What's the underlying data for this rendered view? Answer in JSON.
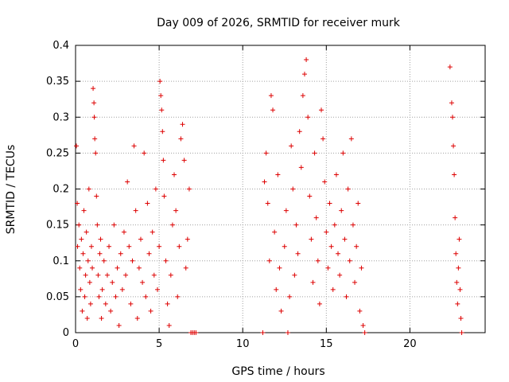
{
  "chart_data": {
    "type": "scatter",
    "title": "Day 009 of 2026, SRMTID for receiver murk",
    "xlabel": "GPS time / hours",
    "ylabel": "SRMTID / TECUs",
    "xlim": [
      0,
      24.5
    ],
    "ylim": [
      0,
      0.4
    ],
    "x_ticks": [
      0,
      5,
      10,
      15,
      20
    ],
    "x_tick_labels": [
      "0",
      "5",
      "10",
      "15",
      "20"
    ],
    "y_ticks": [
      0,
      0.05,
      0.1,
      0.15,
      0.2,
      0.25,
      0.3,
      0.35,
      0.4
    ],
    "y_tick_labels": [
      "0",
      "0.05",
      "0.1",
      "0.15",
      "0.2",
      "0.25",
      "0.3",
      "0.35",
      "0.4"
    ],
    "grid": true,
    "marker": "+",
    "color": "#dd0000",
    "series": [
      {
        "points": [
          [
            0.05,
            0.26
          ],
          [
            0.1,
            0.18
          ],
          [
            0.12,
            0.12
          ],
          [
            0.2,
            0.15
          ],
          [
            0.25,
            0.09
          ],
          [
            0.3,
            0.06
          ],
          [
            0.35,
            0.13
          ],
          [
            0.4,
            0.03
          ],
          [
            0.45,
            0.11
          ],
          [
            0.5,
            0.17
          ],
          [
            0.55,
            0.05
          ],
          [
            0.6,
            0.08
          ],
          [
            0.65,
            0.14
          ],
          [
            0.7,
            0.02
          ],
          [
            0.75,
            0.1
          ],
          [
            0.8,
            0.2
          ],
          [
            0.85,
            0.07
          ],
          [
            0.9,
            0.04
          ],
          [
            0.95,
            0.12
          ],
          [
            1.0,
            0.09
          ],
          [
            1.05,
            0.34
          ],
          [
            1.1,
            0.32
          ],
          [
            1.12,
            0.3
          ],
          [
            1.15,
            0.27
          ],
          [
            1.2,
            0.25
          ],
          [
            1.25,
            0.19
          ],
          [
            1.3,
            0.15
          ],
          [
            1.35,
            0.08
          ],
          [
            1.4,
            0.05
          ],
          [
            1.45,
            0.11
          ],
          [
            1.5,
            0.13
          ],
          [
            1.55,
            0.02
          ],
          [
            1.6,
            0.06
          ],
          [
            1.7,
            0.1
          ],
          [
            1.8,
            0.04
          ],
          [
            1.9,
            0.08
          ],
          [
            2.0,
            0.12
          ],
          [
            2.1,
            0.03
          ],
          [
            2.2,
            0.07
          ],
          [
            2.3,
            0.15
          ],
          [
            2.4,
            0.05
          ],
          [
            2.5,
            0.09
          ],
          [
            2.6,
            0.01
          ],
          [
            2.7,
            0.11
          ],
          [
            2.8,
            0.06
          ],
          [
            2.9,
            0.14
          ],
          [
            3.0,
            0.08
          ],
          [
            3.1,
            0.21
          ],
          [
            3.2,
            0.12
          ],
          [
            3.3,
            0.04
          ],
          [
            3.4,
            0.1
          ],
          [
            3.5,
            0.26
          ],
          [
            3.6,
            0.17
          ],
          [
            3.7,
            0.02
          ],
          [
            3.8,
            0.09
          ],
          [
            3.9,
            0.13
          ],
          [
            4.0,
            0.07
          ],
          [
            4.1,
            0.25
          ],
          [
            4.2,
            0.05
          ],
          [
            4.3,
            0.18
          ],
          [
            4.4,
            0.11
          ],
          [
            4.5,
            0.03
          ],
          [
            4.6,
            0.14
          ],
          [
            4.7,
            0.08
          ],
          [
            4.8,
            0.2
          ],
          [
            4.9,
            0.06
          ],
          [
            5.0,
            0.12
          ],
          [
            5.05,
            0.35
          ],
          [
            5.1,
            0.33
          ],
          [
            5.15,
            0.31
          ],
          [
            5.2,
            0.28
          ],
          [
            5.25,
            0.24
          ],
          [
            5.3,
            0.19
          ],
          [
            5.4,
            0.1
          ],
          [
            5.5,
            0.04
          ],
          [
            5.6,
            0.01
          ],
          [
            5.7,
            0.08
          ],
          [
            5.8,
            0.15
          ],
          [
            5.9,
            0.22
          ],
          [
            6.0,
            0.17
          ],
          [
            6.1,
            0.05
          ],
          [
            6.2,
            0.12
          ],
          [
            6.3,
            0.27
          ],
          [
            6.4,
            0.29
          ],
          [
            6.5,
            0.24
          ],
          [
            6.6,
            0.09
          ],
          [
            6.7,
            0.13
          ],
          [
            6.8,
            0.2
          ],
          [
            6.9,
            0.0
          ],
          [
            7.0,
            0.0
          ],
          [
            7.1,
            0.0
          ],
          [
            7.2,
            0.0
          ],
          [
            11.2,
            0.0
          ],
          [
            11.3,
            0.21
          ],
          [
            11.4,
            0.25
          ],
          [
            11.5,
            0.18
          ],
          [
            11.6,
            0.1
          ],
          [
            11.7,
            0.33
          ],
          [
            11.8,
            0.31
          ],
          [
            11.9,
            0.14
          ],
          [
            12.0,
            0.06
          ],
          [
            12.1,
            0.22
          ],
          [
            12.2,
            0.09
          ],
          [
            12.3,
            0.03
          ],
          [
            12.5,
            0.12
          ],
          [
            12.6,
            0.17
          ],
          [
            12.7,
            0.0
          ],
          [
            12.8,
            0.05
          ],
          [
            12.9,
            0.26
          ],
          [
            13.0,
            0.2
          ],
          [
            13.1,
            0.08
          ],
          [
            13.2,
            0.15
          ],
          [
            13.3,
            0.11
          ],
          [
            13.4,
            0.28
          ],
          [
            13.5,
            0.23
          ],
          [
            13.6,
            0.33
          ],
          [
            13.7,
            0.36
          ],
          [
            13.8,
            0.38
          ],
          [
            13.9,
            0.3
          ],
          [
            14.0,
            0.19
          ],
          [
            14.1,
            0.13
          ],
          [
            14.2,
            0.07
          ],
          [
            14.3,
            0.25
          ],
          [
            14.4,
            0.16
          ],
          [
            14.5,
            0.1
          ],
          [
            14.6,
            0.04
          ],
          [
            14.7,
            0.31
          ],
          [
            14.8,
            0.27
          ],
          [
            14.9,
            0.21
          ],
          [
            15.0,
            0.14
          ],
          [
            15.1,
            0.09
          ],
          [
            15.2,
            0.18
          ],
          [
            15.3,
            0.12
          ],
          [
            15.4,
            0.06
          ],
          [
            15.5,
            0.15
          ],
          [
            15.6,
            0.22
          ],
          [
            15.7,
            0.11
          ],
          [
            15.8,
            0.08
          ],
          [
            15.9,
            0.17
          ],
          [
            16.0,
            0.25
          ],
          [
            16.1,
            0.13
          ],
          [
            16.2,
            0.05
          ],
          [
            16.3,
            0.2
          ],
          [
            16.4,
            0.1
          ],
          [
            16.5,
            0.27
          ],
          [
            16.6,
            0.15
          ],
          [
            16.7,
            0.07
          ],
          [
            16.8,
            0.12
          ],
          [
            16.9,
            0.18
          ],
          [
            17.0,
            0.03
          ],
          [
            17.1,
            0.09
          ],
          [
            17.2,
            0.01
          ],
          [
            17.3,
            0.0
          ],
          [
            22.4,
            0.37
          ],
          [
            22.5,
            0.32
          ],
          [
            22.55,
            0.3
          ],
          [
            22.6,
            0.26
          ],
          [
            22.65,
            0.22
          ],
          [
            22.7,
            0.16
          ],
          [
            22.75,
            0.11
          ],
          [
            22.8,
            0.07
          ],
          [
            22.85,
            0.04
          ],
          [
            22.9,
            0.09
          ],
          [
            22.95,
            0.13
          ],
          [
            23.0,
            0.06
          ],
          [
            23.05,
            0.02
          ],
          [
            23.1,
            0.0
          ]
        ]
      }
    ]
  }
}
